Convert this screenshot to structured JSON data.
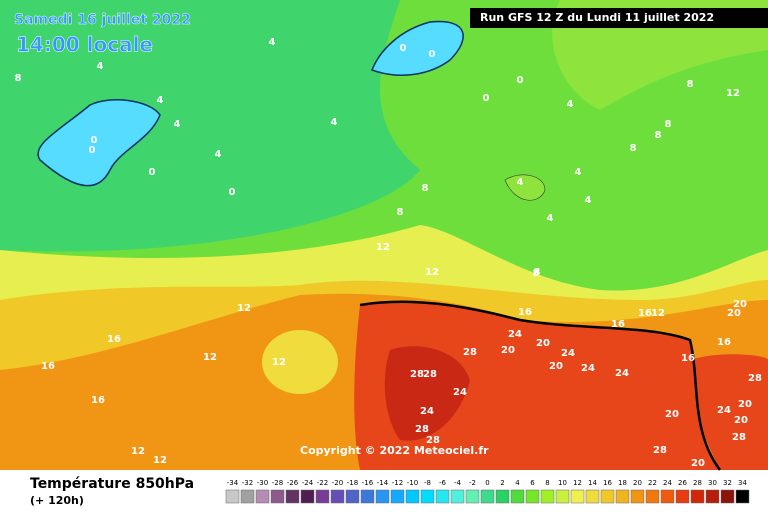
{
  "header": {
    "date": "Samedi 16 juillet 2022",
    "time": "14:00 locale",
    "run": "Run GFS 12 Z du Lundi 11 juillet 2022"
  },
  "copyright": "Copyright © 2022 Meteociel.fr",
  "footer": {
    "title": "Température 850hPa",
    "subtitle": "(+ 120h)"
  },
  "legend": {
    "values": [
      -34,
      -32,
      -30,
      -28,
      -26,
      -24,
      -22,
      -20,
      -18,
      -16,
      -14,
      -12,
      -10,
      -8,
      -6,
      -4,
      -2,
      0,
      2,
      4,
      6,
      8,
      10,
      12,
      14,
      16,
      18,
      20,
      22,
      24,
      26,
      28,
      30,
      32,
      34
    ],
    "colors": [
      "#c8c8c8",
      "#a0a0a0",
      "#b48cb4",
      "#8c5a8c",
      "#643264",
      "#501e50",
      "#783c96",
      "#6450b4",
      "#5064c8",
      "#3c78dc",
      "#2896f0",
      "#14aaff",
      "#00c8ff",
      "#00dcff",
      "#28e6f0",
      "#50f0dc",
      "#64f0b4",
      "#3cdc8c",
      "#28d264",
      "#50dc3c",
      "#78e628",
      "#a0f028",
      "#c8f03c",
      "#f0f050",
      "#f0dc3c",
      "#f0c828",
      "#f0b41e",
      "#f09614",
      "#f0780f",
      "#f05a0f",
      "#e63c0f",
      "#d2280a",
      "#b41e0a",
      "#8c140a",
      "#000000"
    ]
  },
  "contour_labels": [
    8,
    4,
    4,
    4,
    4,
    4,
    4,
    0,
    0,
    0,
    0,
    0,
    0,
    0,
    0,
    4,
    8,
    8,
    12,
    12,
    8,
    12,
    16,
    12,
    12,
    16,
    16,
    12,
    12,
    16,
    28,
    20,
    20,
    24,
    28,
    28,
    24,
    24,
    28,
    28,
    24,
    24,
    20,
    24,
    16,
    12,
    16,
    16,
    16,
    20,
    20,
    28,
    24,
    20,
    20,
    28,
    20,
    28,
    20,
    8,
    8,
    8,
    12,
    8,
    4,
    4,
    4,
    4,
    8
  ]
}
